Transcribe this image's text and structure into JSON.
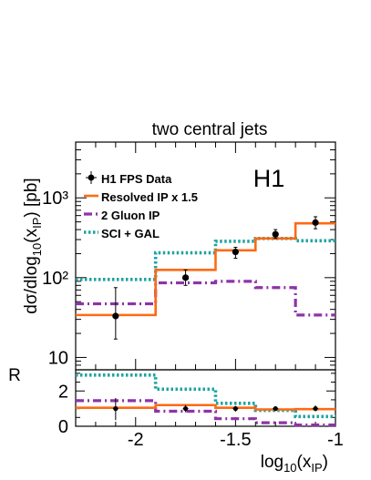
{
  "chart_data": {
    "type": "step",
    "title": "two central jets",
    "experiment_label": "H1",
    "xlabel": "log₁₀(x_IP)",
    "ylabel": "dσ/dlog₁₀(x_IP) [pb]",
    "x_ticks": [
      "-2",
      "-1.5",
      "-1"
    ],
    "x_tick_values": [
      -2,
      -1.5,
      -1
    ],
    "xlim": [
      -2.3,
      -1.0
    ],
    "y_scale": "log",
    "ylim": [
      7,
      5000
    ],
    "y_ticks": [
      "10",
      "10²",
      "10³"
    ],
    "bin_edges": [
      -2.3,
      -1.9,
      -1.6,
      -1.4,
      -1.2,
      -1.0
    ],
    "data": {
      "name": "H1 FPS Data",
      "x": [
        -2.1,
        -1.75,
        -1.5,
        -1.3,
        -1.1
      ],
      "y": [
        33,
        100,
        210,
        350,
        490
      ],
      "err_lo": [
        17,
        80,
        175,
        310,
        410
      ],
      "err_hi": [
        75,
        125,
        240,
        400,
        580
      ]
    },
    "series": [
      {
        "name": "Resolved IP x 1.5",
        "style": "solid",
        "color": "#ff6a13",
        "values": [
          34,
          125,
          220,
          310,
          480
        ]
      },
      {
        "name": "2 Gluon IP",
        "style": "dashdot",
        "color": "#8e33a8",
        "values": [
          47,
          86,
          90,
          75,
          34
        ]
      },
      {
        "name": "SCI + GAL",
        "style": "dotted",
        "color": "#1fa3a0",
        "values": [
          95,
          205,
          285,
          310,
          290
        ]
      }
    ],
    "ratio_panel": {
      "ylabel": "R",
      "ylim": [
        0,
        3.2
      ],
      "y_ticks": [
        "0",
        "2"
      ],
      "y_tick_values": [
        0,
        2
      ],
      "data": {
        "x": [
          -2.1,
          -1.75,
          -1.5,
          -1.3,
          -1.1
        ],
        "y": [
          1.0,
          1.0,
          1.0,
          1.0,
          1.0
        ],
        "err_lo": [
          0.35,
          0.8,
          0.83,
          0.88,
          0.85
        ],
        "err_hi": [
          1.6,
          1.2,
          1.15,
          1.12,
          1.18
        ]
      },
      "series": [
        {
          "name": "Resolved IP x 1.5",
          "values": [
            1.05,
            1.2,
            1.05,
            0.95,
            0.97
          ]
        },
        {
          "name": "2 Gluon IP",
          "values": [
            1.45,
            0.85,
            0.43,
            0.2,
            0.07
          ]
        },
        {
          "name": "SCI + GAL",
          "values": [
            2.9,
            2.1,
            1.3,
            0.9,
            0.55
          ]
        }
      ]
    }
  }
}
